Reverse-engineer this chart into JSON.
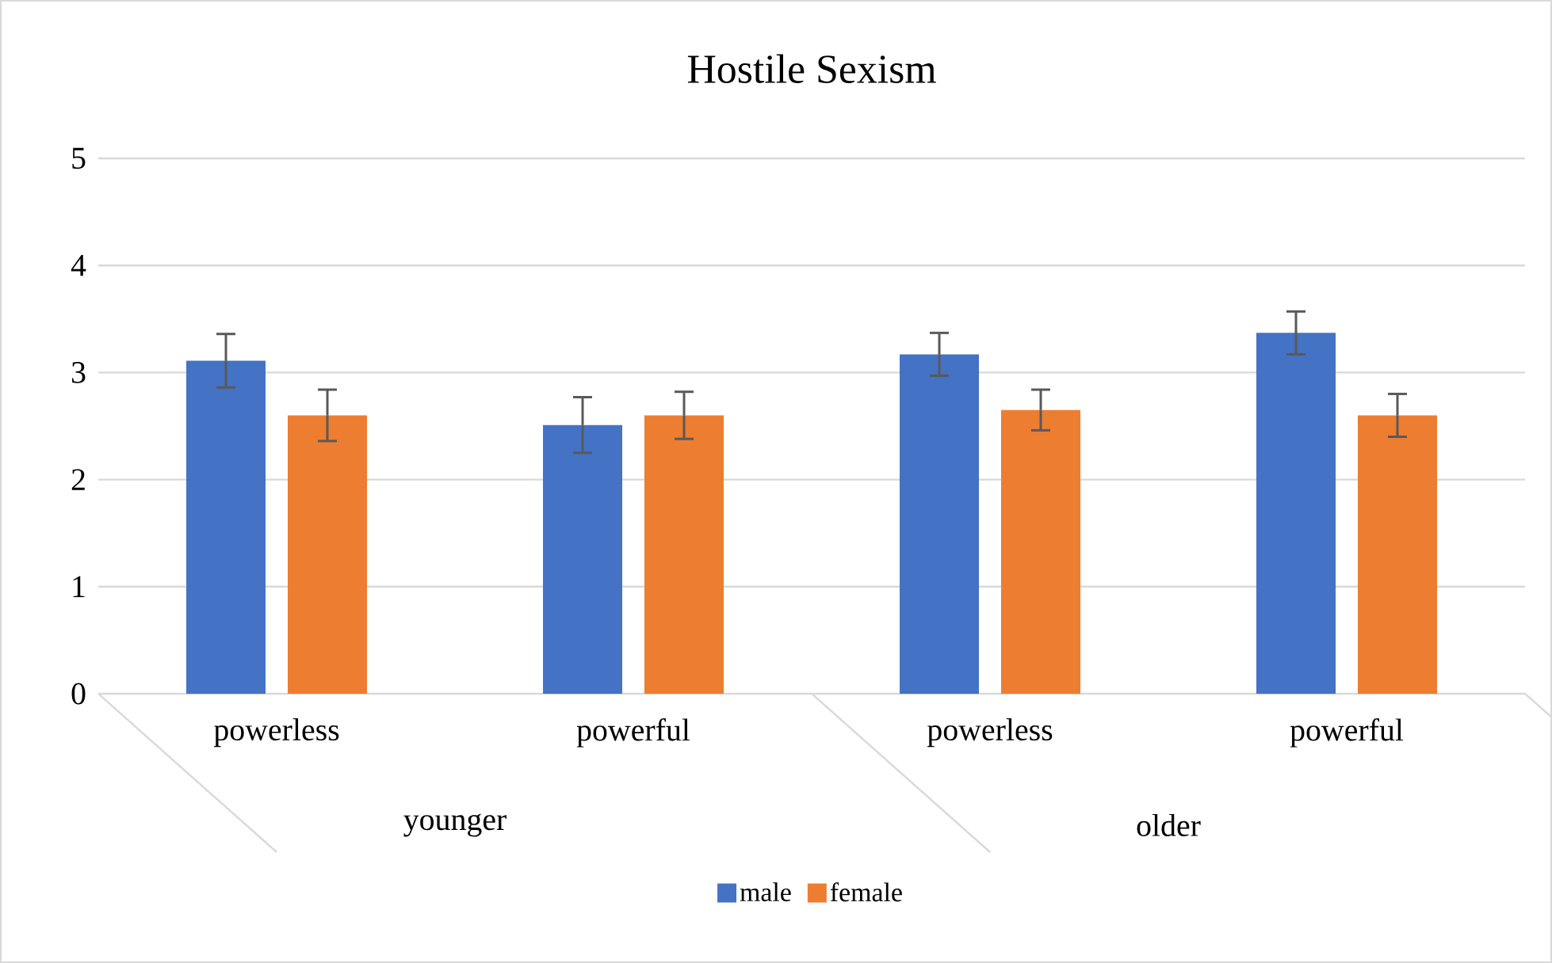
{
  "chart_data": {
    "type": "bar",
    "title": "Hostile Sexism",
    "categories": [
      "powerless",
      "powerful",
      "powerless",
      "powerful"
    ],
    "series": [
      {
        "name": "male",
        "color": "#4472c4",
        "values": [
          3.11,
          2.51,
          3.17,
          3.37
        ],
        "errors": [
          0.25,
          0.26,
          0.2,
          0.2
        ]
      },
      {
        "name": "female",
        "color": "#ed7d31",
        "values": [
          2.6,
          2.6,
          2.65,
          2.6
        ],
        "errors": [
          0.24,
          0.22,
          0.19,
          0.2
        ]
      }
    ],
    "ylim": [
      0,
      5
    ],
    "yticks": [
      0,
      1,
      2,
      3,
      4,
      5
    ],
    "grid": "y",
    "legend": "bottom",
    "annotations": [
      "younger",
      "older"
    ]
  }
}
